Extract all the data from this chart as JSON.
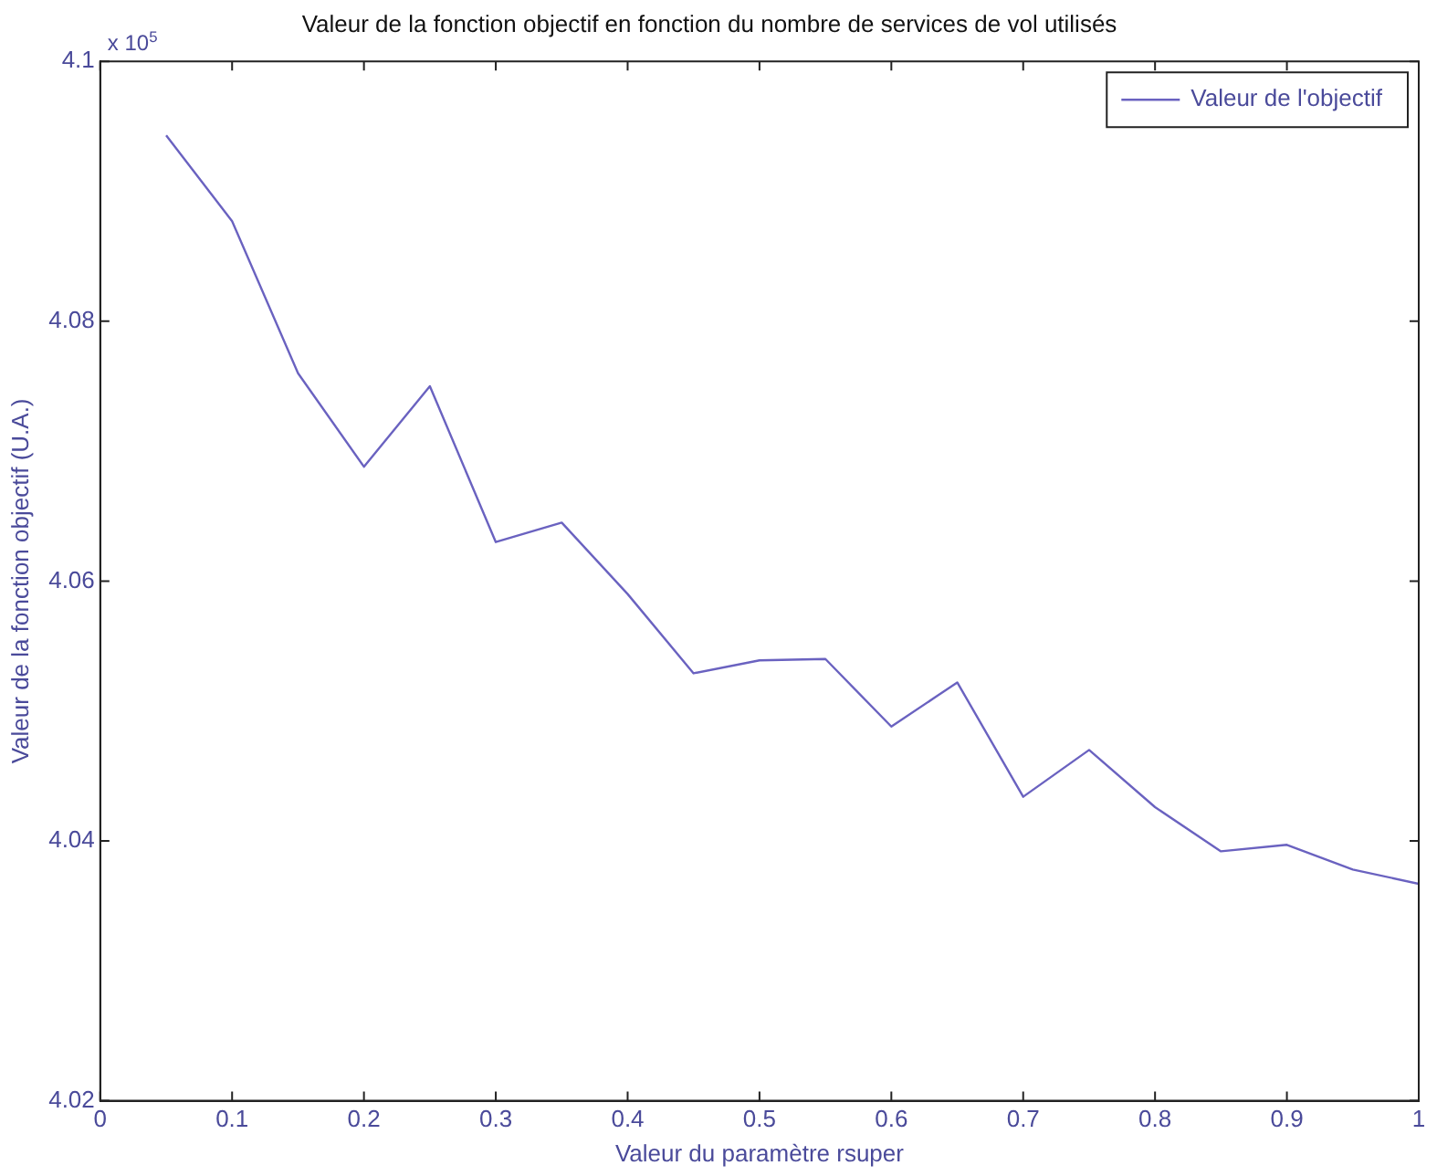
{
  "chart_data": {
    "type": "line",
    "title": "Valeur de la fonction objectif en fonction du nombre de services de vol utilisés",
    "xlabel": "Valeur du paramètre rsuper",
    "ylabel": "Valeur de la fonction objectif (U.A.)",
    "annotations": [
      "x 10$^{5}$"
    ],
    "x": [
      0.05,
      0.1,
      0.15,
      0.2,
      0.25,
      0.3,
      0.35,
      0.4,
      0.45,
      0.5,
      0.55,
      0.6,
      0.65,
      0.7,
      0.75,
      0.8,
      0.85,
      0.9,
      0.95,
      1.0
    ],
    "series": [
      {
        "name": "Valeur de l'objectif",
        "color": "#6a62c0",
        "values": [
          4.0943,
          4.0877,
          4.076,
          4.0688,
          4.075,
          4.063,
          4.0645,
          4.059,
          4.0529,
          4.0539,
          4.054,
          4.0488,
          4.0522,
          4.0434,
          4.047,
          4.0426,
          4.0392,
          4.0397,
          4.0378,
          4.0367
        ]
      }
    ],
    "xlim": [
      0,
      1
    ],
    "xticks": [
      0,
      0.1,
      0.2,
      0.3,
      0.4,
      0.5,
      0.6,
      0.7,
      0.8,
      0.9,
      1
    ],
    "ylim": [
      4.02,
      4.1
    ],
    "yticks": [
      4.02,
      4.04,
      4.06,
      4.08,
      4.1
    ],
    "grid": false,
    "legend": "top right",
    "marker": "none",
    "line_style": "solid"
  }
}
